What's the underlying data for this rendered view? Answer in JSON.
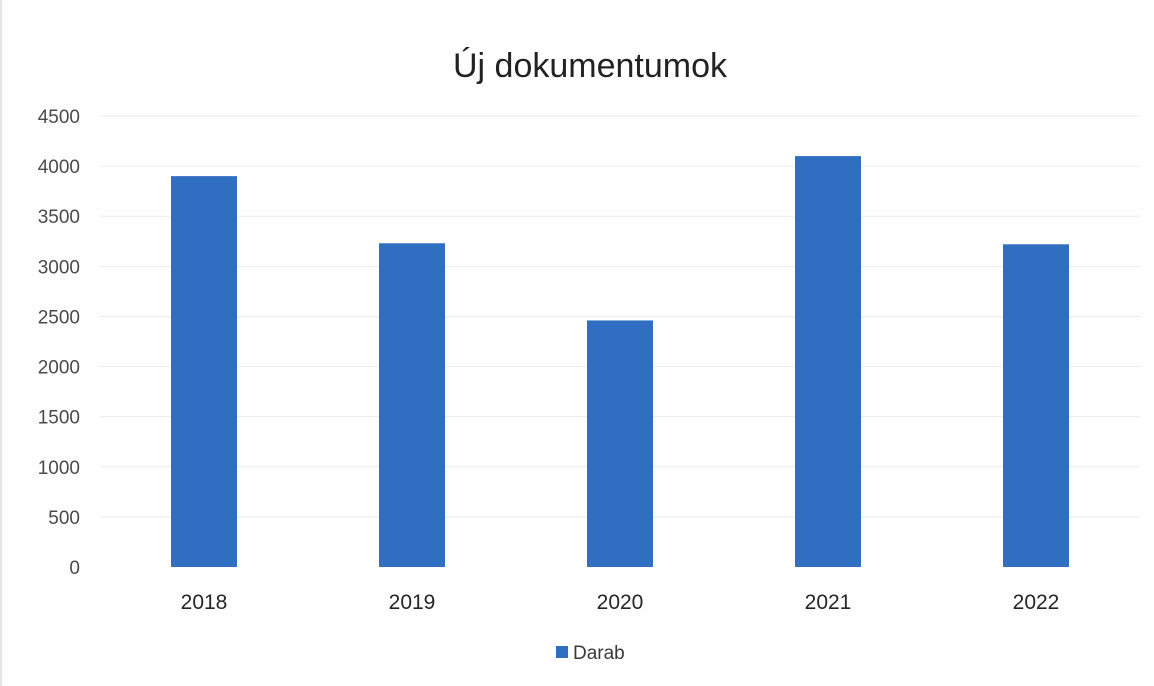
{
  "chart_data": {
    "type": "bar",
    "title": "Új dokumentumok",
    "xlabel": "",
    "ylabel": "",
    "categories": [
      "2018",
      "2019",
      "2020",
      "2021",
      "2022"
    ],
    "series": [
      {
        "name": "Darab",
        "values": [
          3900,
          3230,
          2460,
          4100,
          3220
        ]
      }
    ],
    "ylim": [
      0,
      4500
    ],
    "y_ticks": [
      "0",
      "500",
      "1000",
      "1500",
      "2000",
      "2500",
      "3000",
      "3500",
      "4000",
      "4500"
    ],
    "grid": true,
    "legend": "bottom-center",
    "colors": {
      "bar": "#2f6ec1"
    }
  }
}
